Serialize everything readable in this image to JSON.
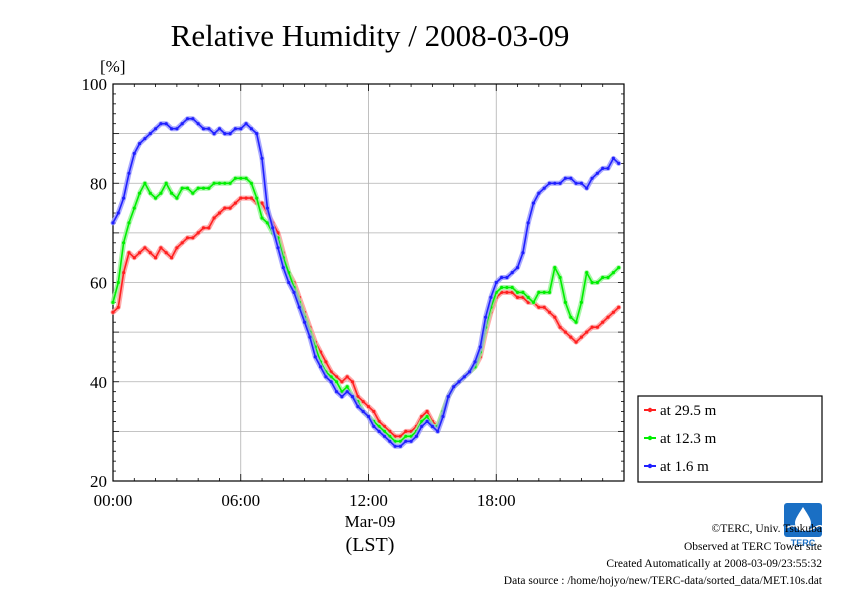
{
  "title": "Relative Humidity / 2008-03-09",
  "y_unit": "[%]",
  "x_date_label": "Mar-09",
  "x_axis_label": "(LST)",
  "legend": [
    {
      "label": "at 29.5 m",
      "color": "#ff2020"
    },
    {
      "label": "at 12.3 m",
      "color": "#00ee00"
    },
    {
      "label": "at 1.6 m",
      "color": "#2020ff"
    }
  ],
  "footer": {
    "copyright": "©TERC, Univ. Tsukuba",
    "observed": "Observed at TERC Tower site",
    "created": "Created Automatically at 2008-03-09/23:55:32",
    "source": "Data source : /home/hojyo/new/TERC-data/sorted_data/MET.10s.dat"
  },
  "logo_text": "TERC",
  "chart_data": {
    "type": "line",
    "title": "Relative Humidity / 2008-03-09",
    "ylabel": "[%]",
    "xlabel": "(LST)",
    "xlim": [
      0,
      24
    ],
    "ylim": [
      20,
      100
    ],
    "x_ticks": [
      "00:00",
      "06:00",
      "12:00",
      "18:00"
    ],
    "y_ticks": [
      20,
      40,
      60,
      80,
      100
    ],
    "grid": true,
    "legend_position": "right",
    "series": [
      {
        "name": "at 29.5 m",
        "color": "#ff2020",
        "points": [
          [
            0.0,
            54
          ],
          [
            0.25,
            55
          ],
          [
            0.5,
            62
          ],
          [
            0.75,
            66
          ],
          [
            1.0,
            65
          ],
          [
            1.25,
            66
          ],
          [
            1.5,
            67
          ],
          [
            1.75,
            66
          ],
          [
            2.0,
            65
          ],
          [
            2.25,
            67
          ],
          [
            2.5,
            66
          ],
          [
            2.75,
            65
          ],
          [
            3.0,
            67
          ],
          [
            3.25,
            68
          ],
          [
            3.5,
            69
          ],
          [
            3.75,
            69
          ],
          [
            4.0,
            70
          ],
          [
            4.25,
            71
          ],
          [
            4.5,
            71
          ],
          [
            4.75,
            73
          ],
          [
            5.0,
            74
          ],
          [
            5.25,
            75
          ],
          [
            5.5,
            75
          ],
          [
            5.75,
            76
          ],
          [
            6.0,
            77
          ],
          [
            6.25,
            77
          ],
          [
            6.5,
            77
          ],
          [
            6.75,
            76
          ],
          [
            7.0,
            76
          ],
          [
            7.25,
            74
          ],
          [
            7.5,
            72
          ],
          [
            7.75,
            70
          ],
          [
            8.0,
            66
          ],
          [
            8.25,
            62
          ],
          [
            8.5,
            60
          ],
          [
            8.75,
            57
          ],
          [
            9.0,
            54
          ],
          [
            9.25,
            51
          ],
          [
            9.5,
            48
          ],
          [
            9.75,
            46
          ],
          [
            10.0,
            44
          ],
          [
            10.25,
            42
          ],
          [
            10.5,
            41
          ],
          [
            10.75,
            40
          ],
          [
            11.0,
            41
          ],
          [
            11.25,
            40
          ],
          [
            11.5,
            37
          ],
          [
            11.75,
            36
          ],
          [
            12.0,
            35
          ],
          [
            12.25,
            34
          ],
          [
            12.5,
            32
          ],
          [
            12.75,
            31
          ],
          [
            13.0,
            30
          ],
          [
            13.25,
            29
          ],
          [
            13.5,
            29
          ],
          [
            13.75,
            30
          ],
          [
            14.0,
            30
          ],
          [
            14.25,
            31
          ],
          [
            14.5,
            33
          ],
          [
            14.75,
            34
          ],
          [
            15.0,
            32
          ],
          [
            15.25,
            31
          ],
          [
            15.5,
            34
          ],
          [
            15.75,
            37
          ],
          [
            16.0,
            39
          ],
          [
            16.25,
            40
          ],
          [
            16.5,
            41
          ],
          [
            16.75,
            42
          ],
          [
            17.0,
            43
          ],
          [
            17.25,
            45
          ],
          [
            17.5,
            50
          ],
          [
            17.75,
            54
          ],
          [
            18.0,
            57
          ],
          [
            18.25,
            58
          ],
          [
            18.5,
            58
          ],
          [
            18.75,
            58
          ],
          [
            19.0,
            57
          ],
          [
            19.25,
            57
          ],
          [
            19.5,
            56
          ],
          [
            19.75,
            56
          ],
          [
            20.0,
            55
          ],
          [
            20.25,
            55
          ],
          [
            20.5,
            54
          ],
          [
            20.75,
            53
          ],
          [
            21.0,
            51
          ],
          [
            21.25,
            50
          ],
          [
            21.5,
            49
          ],
          [
            21.75,
            48
          ],
          [
            22.0,
            49
          ],
          [
            22.25,
            50
          ],
          [
            22.5,
            51
          ],
          [
            22.75,
            51
          ],
          [
            23.0,
            52
          ],
          [
            23.25,
            53
          ],
          [
            23.5,
            54
          ],
          [
            23.75,
            55
          ]
        ]
      },
      {
        "name": "at 12.3 m",
        "color": "#00ee00",
        "points": [
          [
            0.0,
            56
          ],
          [
            0.25,
            60
          ],
          [
            0.5,
            68
          ],
          [
            0.75,
            72
          ],
          [
            1.0,
            75
          ],
          [
            1.25,
            78
          ],
          [
            1.5,
            80
          ],
          [
            1.75,
            78
          ],
          [
            2.0,
            77
          ],
          [
            2.25,
            78
          ],
          [
            2.5,
            80
          ],
          [
            2.75,
            78
          ],
          [
            3.0,
            77
          ],
          [
            3.25,
            79
          ],
          [
            3.5,
            79
          ],
          [
            3.75,
            78
          ],
          [
            4.0,
            79
          ],
          [
            4.25,
            79
          ],
          [
            4.5,
            79
          ],
          [
            4.75,
            80
          ],
          [
            5.0,
            80
          ],
          [
            5.25,
            80
          ],
          [
            5.5,
            80
          ],
          [
            5.75,
            81
          ],
          [
            6.0,
            81
          ],
          [
            6.25,
            81
          ],
          [
            6.5,
            80
          ],
          [
            6.75,
            77
          ],
          [
            7.0,
            73
          ],
          [
            7.25,
            72
          ],
          [
            7.5,
            70
          ],
          [
            7.75,
            69
          ],
          [
            8.0,
            65
          ],
          [
            8.25,
            62
          ],
          [
            8.5,
            59
          ],
          [
            8.75,
            56
          ],
          [
            9.0,
            53
          ],
          [
            9.25,
            50
          ],
          [
            9.5,
            47
          ],
          [
            9.75,
            44
          ],
          [
            10.0,
            42
          ],
          [
            10.25,
            41
          ],
          [
            10.5,
            40
          ],
          [
            10.75,
            38
          ],
          [
            11.0,
            39
          ],
          [
            11.25,
            37
          ],
          [
            11.5,
            36
          ],
          [
            11.75,
            34
          ],
          [
            12.0,
            33
          ],
          [
            12.25,
            32
          ],
          [
            12.5,
            31
          ],
          [
            12.75,
            30
          ],
          [
            13.0,
            29
          ],
          [
            13.25,
            28
          ],
          [
            13.5,
            28
          ],
          [
            13.75,
            29
          ],
          [
            14.0,
            29
          ],
          [
            14.25,
            30
          ],
          [
            14.5,
            32
          ],
          [
            14.75,
            33
          ],
          [
            15.0,
            31
          ],
          [
            15.25,
            31
          ],
          [
            15.5,
            34
          ],
          [
            15.75,
            37
          ],
          [
            16.0,
            39
          ],
          [
            16.25,
            40
          ],
          [
            16.5,
            41
          ],
          [
            16.75,
            42
          ],
          [
            17.0,
            43
          ],
          [
            17.25,
            46
          ],
          [
            17.5,
            51
          ],
          [
            17.75,
            55
          ],
          [
            18.0,
            58
          ],
          [
            18.25,
            59
          ],
          [
            18.5,
            59
          ],
          [
            18.75,
            59
          ],
          [
            19.0,
            58
          ],
          [
            19.25,
            58
          ],
          [
            19.5,
            57
          ],
          [
            19.75,
            56
          ],
          [
            20.0,
            58
          ],
          [
            20.25,
            58
          ],
          [
            20.5,
            58
          ],
          [
            20.75,
            63
          ],
          [
            21.0,
            61
          ],
          [
            21.25,
            56
          ],
          [
            21.5,
            53
          ],
          [
            21.75,
            52
          ],
          [
            22.0,
            56
          ],
          [
            22.25,
            62
          ],
          [
            22.5,
            60
          ],
          [
            22.75,
            60
          ],
          [
            23.0,
            61
          ],
          [
            23.25,
            61
          ],
          [
            23.5,
            62
          ],
          [
            23.75,
            63
          ]
        ]
      },
      {
        "name": "at 1.6 m",
        "color": "#2020ff",
        "points": [
          [
            0.0,
            72
          ],
          [
            0.25,
            74
          ],
          [
            0.5,
            77
          ],
          [
            0.75,
            82
          ],
          [
            1.0,
            86
          ],
          [
            1.25,
            88
          ],
          [
            1.5,
            89
          ],
          [
            1.75,
            90
          ],
          [
            2.0,
            91
          ],
          [
            2.25,
            92
          ],
          [
            2.5,
            92
          ],
          [
            2.75,
            91
          ],
          [
            3.0,
            91
          ],
          [
            3.25,
            92
          ],
          [
            3.5,
            93
          ],
          [
            3.75,
            93
          ],
          [
            4.0,
            92
          ],
          [
            4.25,
            91
          ],
          [
            4.5,
            91
          ],
          [
            4.75,
            90
          ],
          [
            5.0,
            91
          ],
          [
            5.25,
            90
          ],
          [
            5.5,
            90
          ],
          [
            5.75,
            91
          ],
          [
            6.0,
            91
          ],
          [
            6.25,
            92
          ],
          [
            6.5,
            91
          ],
          [
            6.75,
            90
          ],
          [
            7.0,
            85
          ],
          [
            7.25,
            75
          ],
          [
            7.5,
            71
          ],
          [
            7.75,
            67
          ],
          [
            8.0,
            63
          ],
          [
            8.25,
            60
          ],
          [
            8.5,
            58
          ],
          [
            8.75,
            55
          ],
          [
            9.0,
            52
          ],
          [
            9.25,
            49
          ],
          [
            9.5,
            45
          ],
          [
            9.75,
            43
          ],
          [
            10.0,
            41
          ],
          [
            10.25,
            40
          ],
          [
            10.5,
            38
          ],
          [
            10.75,
            37
          ],
          [
            11.0,
            38
          ],
          [
            11.25,
            37
          ],
          [
            11.5,
            35
          ],
          [
            11.75,
            34
          ],
          [
            12.0,
            33
          ],
          [
            12.25,
            31
          ],
          [
            12.5,
            30
          ],
          [
            12.75,
            29
          ],
          [
            13.0,
            28
          ],
          [
            13.25,
            27
          ],
          [
            13.5,
            27
          ],
          [
            13.75,
            28
          ],
          [
            14.0,
            28
          ],
          [
            14.25,
            29
          ],
          [
            14.5,
            31
          ],
          [
            14.75,
            32
          ],
          [
            15.0,
            31
          ],
          [
            15.25,
            30
          ],
          [
            15.5,
            33
          ],
          [
            15.75,
            37
          ],
          [
            16.0,
            39
          ],
          [
            16.25,
            40
          ],
          [
            16.5,
            41
          ],
          [
            16.75,
            42
          ],
          [
            17.0,
            44
          ],
          [
            17.25,
            47
          ],
          [
            17.5,
            53
          ],
          [
            17.75,
            57
          ],
          [
            18.0,
            60
          ],
          [
            18.25,
            61
          ],
          [
            18.5,
            61
          ],
          [
            18.75,
            62
          ],
          [
            19.0,
            63
          ],
          [
            19.25,
            66
          ],
          [
            19.5,
            72
          ],
          [
            19.75,
            76
          ],
          [
            20.0,
            78
          ],
          [
            20.25,
            79
          ],
          [
            20.5,
            80
          ],
          [
            20.75,
            80
          ],
          [
            21.0,
            80
          ],
          [
            21.25,
            81
          ],
          [
            21.5,
            81
          ],
          [
            21.75,
            80
          ],
          [
            22.0,
            80
          ],
          [
            22.25,
            79
          ],
          [
            22.5,
            81
          ],
          [
            22.75,
            82
          ],
          [
            23.0,
            83
          ],
          [
            23.25,
            83
          ],
          [
            23.5,
            85
          ],
          [
            23.75,
            84
          ]
        ]
      }
    ]
  }
}
